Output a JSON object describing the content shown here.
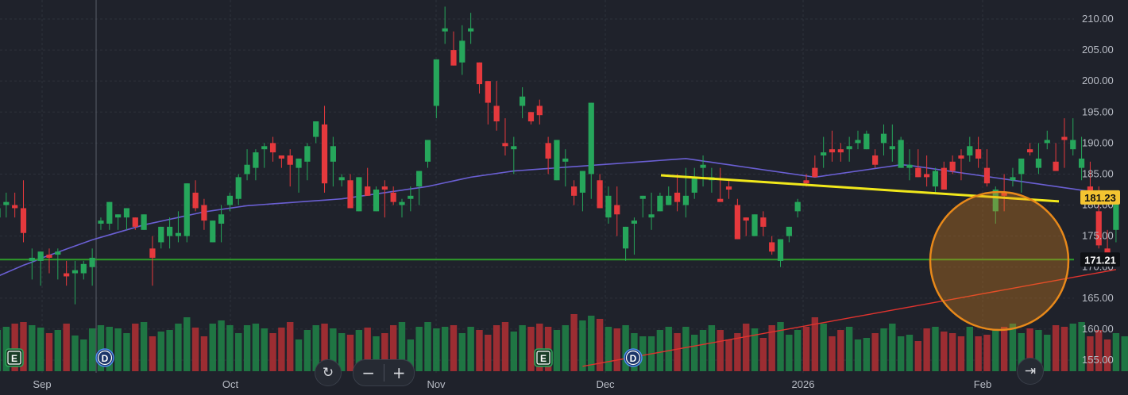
{
  "chart_data": {
    "type": "candlestick",
    "y_axis_ticks": [
      "155.00",
      "160.00",
      "165.00",
      "170.00",
      "175.00",
      "180.00",
      "185.00",
      "190.00",
      "195.00",
      "200.00",
      "205.00",
      "210.00"
    ],
    "ylim": [
      153.5,
      212.0
    ],
    "x_axis_labels": [
      "Sep",
      "Oct",
      "Nov",
      "Dec",
      "2026",
      "Feb"
    ],
    "last_price_label": "181.23",
    "horizontal_line_label": "171.21",
    "horizontal_line_value": 171.21,
    "event_markers": [
      {
        "label": "E",
        "type": "earnings",
        "bar_index": 1
      },
      {
        "label": "D",
        "type": "dividend",
        "bar_index": 11
      },
      {
        "label": "D",
        "type": "dividend",
        "bar_index": 67
      },
      {
        "label": "E",
        "type": "earnings",
        "bar_index": 57
      }
    ],
    "series_candles": [
      [
        178,
        181,
        176,
        179.5
      ],
      [
        180,
        182,
        178,
        180.5
      ],
      [
        180,
        182,
        178,
        179.5
      ],
      [
        179.5,
        184,
        174,
        175.5
      ],
      [
        171,
        173,
        168,
        171.5
      ],
      [
        171,
        172,
        167,
        172.5
      ],
      [
        172,
        173,
        169,
        171.5
      ],
      [
        172,
        173,
        168,
        172.5
      ],
      [
        169,
        171,
        167,
        168.5
      ],
      [
        169,
        171,
        164,
        169.5
      ],
      [
        169,
        171,
        168,
        170.5
      ],
      [
        170,
        173,
        167,
        171.5
      ],
      [
        177,
        178,
        176,
        177.5
      ],
      [
        177,
        178,
        176,
        180.5
      ],
      [
        178,
        178,
        176,
        178.5
      ],
      [
        178,
        178,
        176,
        179.5
      ],
      [
        178,
        178,
        176,
        176.5
      ],
      [
        176,
        178,
        176,
        178.5
      ],
      [
        173,
        175,
        167,
        171.5
      ],
      [
        174,
        176,
        173,
        176.5
      ],
      [
        175,
        178,
        173,
        176.5
      ],
      [
        175,
        179,
        174,
        175.5
      ],
      [
        175,
        183,
        174,
        183.5
      ],
      [
        182,
        184,
        179,
        179.5
      ],
      [
        180,
        181,
        176,
        177.5
      ],
      [
        174,
        176,
        175,
        177.5
      ],
      [
        177,
        180,
        174,
        178.5
      ],
      [
        180,
        182,
        179,
        181.5
      ],
      [
        181,
        185,
        180,
        184.5
      ],
      [
        185,
        189,
        184,
        186.5
      ],
      [
        186,
        189,
        184,
        188.5
      ],
      [
        189,
        190,
        186,
        189.5
      ],
      [
        190,
        191,
        187,
        188.5
      ],
      [
        188,
        188,
        186,
        187.5
      ],
      [
        188,
        189,
        183,
        186.5
      ],
      [
        186,
        187,
        182,
        187.5
      ],
      [
        187,
        190,
        184,
        189.5
      ],
      [
        191,
        191,
        190,
        193.5
      ],
      [
        193,
        196,
        182,
        183.5
      ],
      [
        187,
        191,
        183,
        189.5
      ],
      [
        184,
        185,
        183,
        184.5
      ],
      [
        184,
        185,
        181,
        179.5
      ],
      [
        179,
        181,
        179,
        184.5
      ],
      [
        183,
        186,
        182,
        181.5
      ],
      [
        179,
        183,
        181,
        182.5
      ],
      [
        183,
        184,
        178,
        182.5
      ],
      [
        182,
        183,
        180,
        180.5
      ],
      [
        180,
        181,
        178,
        180.5
      ],
      [
        181,
        183,
        179,
        181.5
      ],
      [
        183,
        185,
        180,
        185.5
      ],
      [
        187,
        190,
        186,
        190.5
      ],
      [
        196,
        198,
        194,
        203.5
      ],
      [
        208,
        212,
        206,
        208.5
      ],
      [
        205,
        208,
        203,
        202.5
      ],
      [
        203,
        209,
        201,
        206.5
      ],
      [
        208,
        211,
        206,
        208.5
      ],
      [
        203,
        203,
        198,
        199.5
      ],
      [
        200,
        199,
        193,
        196.5
      ],
      [
        196,
        200,
        192,
        193.5
      ],
      [
        190,
        194,
        188,
        189.5
      ],
      [
        189,
        191,
        185,
        189.5
      ],
      [
        196,
        199,
        194,
        197.5
      ],
      [
        195,
        195,
        193,
        193.5
      ],
      [
        196,
        197,
        193,
        194.5
      ],
      [
        190,
        191,
        185,
        187.5
      ],
      [
        184,
        190,
        184,
        190.5
      ],
      [
        187,
        189,
        183,
        187.5
      ],
      [
        183,
        184,
        180,
        181.5
      ],
      [
        182,
        185,
        179,
        185.5
      ],
      [
        185,
        195,
        181,
        196.5
      ],
      [
        184,
        185,
        180,
        179.5
      ],
      [
        178,
        183,
        177,
        181.5
      ],
      [
        180,
        183,
        175,
        178.5
      ],
      [
        173,
        175,
        171,
        176.5
      ],
      [
        177,
        178,
        172,
        177.5
      ],
      [
        181,
        181,
        178,
        181.5
      ],
      [
        178,
        182,
        176,
        178.5
      ],
      [
        179,
        182,
        179,
        181.5
      ],
      [
        180,
        183,
        180,
        181.5
      ],
      [
        182,
        185,
        179,
        180.5
      ],
      [
        180,
        186,
        178,
        181.5
      ],
      [
        182,
        186,
        181,
        184.5
      ],
      [
        186,
        188,
        183,
        186.5
      ],
      [
        184,
        186,
        182,
        184.5
      ],
      [
        181,
        186,
        181,
        180.5
      ],
      [
        183,
        184,
        181,
        182.5
      ],
      [
        180,
        181,
        175,
        174.5
      ],
      [
        178,
        178,
        175,
        177.5
      ],
      [
        175,
        177,
        175,
        178.5
      ],
      [
        178,
        179,
        175,
        176.5
      ],
      [
        174,
        175,
        172,
        172.5
      ],
      [
        171,
        172,
        170,
        174.5
      ],
      [
        175,
        176,
        174,
        176.5
      ],
      [
        179,
        181,
        178,
        180.5
      ],
      [
        184,
        185,
        183,
        183.5
      ],
      [
        186,
        188,
        185,
        184.5
      ],
      [
        188,
        191,
        186,
        188.5
      ],
      [
        189,
        192,
        187,
        188.5
      ],
      [
        189,
        190,
        187,
        188.5
      ],
      [
        189,
        191,
        187,
        189.5
      ],
      [
        190,
        192,
        189,
        190.5
      ],
      [
        189,
        192,
        189,
        191.5
      ],
      [
        188,
        189,
        186,
        186.5
      ],
      [
        190,
        193,
        188,
        191.5
      ],
      [
        189,
        193,
        187,
        189.5
      ],
      [
        186,
        191,
        188,
        190.5
      ],
      [
        186,
        189,
        184,
        186.5
      ],
      [
        186,
        189,
        185,
        184.5
      ],
      [
        185,
        188,
        183,
        184.5
      ],
      [
        183,
        186,
        182,
        185.5
      ],
      [
        186,
        187,
        183,
        182.5
      ],
      [
        187,
        188,
        185,
        185.5
      ],
      [
        188,
        189,
        184,
        187.5
      ],
      [
        188,
        191,
        187,
        189.5
      ],
      [
        189,
        191,
        186,
        187.5
      ],
      [
        186,
        189,
        183,
        183.5
      ],
      [
        179,
        183,
        177,
        182.5
      ],
      [
        182,
        185,
        179,
        181.5
      ],
      [
        184,
        186,
        183,
        184.5
      ],
      [
        185,
        186,
        182,
        187.5
      ],
      [
        189,
        190,
        188,
        188.5
      ],
      [
        186,
        190,
        185,
        187.5
      ],
      [
        190,
        192,
        189,
        190.5
      ],
      [
        187,
        190,
        186,
        185.5
      ],
      [
        191,
        194,
        186,
        190.5
      ],
      [
        189,
        194,
        188,
        190.5
      ],
      [
        186,
        191,
        184,
        187.5
      ],
      [
        183,
        187,
        180,
        180.5
      ],
      [
        179,
        183,
        173,
        173.5
      ],
      [
        173,
        176,
        171,
        171.5
      ],
      [
        176,
        181,
        174,
        181.5
      ]
    ],
    "ma_short_values": [
      168.5,
      169.1,
      169.7,
      170.3,
      170.8,
      171.4,
      171.9,
      172.4,
      172.9,
      173.4,
      173.9,
      174.4,
      174.8,
      175.2,
      175.6,
      176.0,
      176.4,
      176.8,
      177.1,
      177.4,
      177.7,
      178.0,
      178.3,
      178.6,
      178.9,
      179.1,
      179.3,
      179.5,
      179.7,
      179.9,
      180.0,
      180.1,
      180.2,
      180.3,
      180.4,
      180.5,
      180.6,
      180.7,
      180.8,
      180.9,
      181.0,
      181.2,
      181.4,
      181.6,
      181.8,
      182.0,
      182.2,
      182.4,
      182.6,
      182.8,
      183.0,
      183.3,
      183.6,
      183.9,
      184.2,
      184.5,
      184.7,
      184.9,
      185.1,
      185.3,
      185.5,
      185.6,
      185.7,
      185.8,
      185.9,
      186.0,
      186.1,
      186.2,
      186.3,
      186.4,
      186.5,
      186.6,
      186.7,
      186.8,
      186.9,
      187.0,
      187.1,
      187.2,
      187.3,
      187.4,
      187.5,
      187.3,
      187.1,
      186.9,
      186.7,
      186.5,
      186.3,
      186.1,
      185.9,
      185.7,
      185.5,
      185.3,
      185.1,
      184.9,
      184.7,
      184.5,
      184.7,
      184.9,
      185.1,
      185.3,
      185.5,
      185.7,
      185.9,
      186.1,
      186.3,
      186.5,
      186.4,
      186.2,
      186.0,
      185.8,
      185.6,
      185.4,
      185.2,
      185.0,
      184.8,
      184.6,
      184.4,
      184.2,
      184.0,
      183.8,
      183.6,
      183.4,
      183.2,
      183.0,
      182.8,
      182.6,
      182.4,
      182.2,
      182.0
    ],
    "ma_long_values": [
      154.0,
      154.6,
      155.2,
      155.8,
      156.4,
      157.0,
      157.6,
      158.2,
      158.8,
      159.4,
      160.0,
      160.6,
      161.2,
      161.8,
      162.4,
      163.0,
      163.6,
      164.2,
      164.8,
      165.4,
      166.0,
      166.6,
      167.2,
      167.8,
      168.4,
      169.0,
      169.6
    ],
    "volume_heights": [
      52,
      56,
      60,
      62,
      58,
      55,
      48,
      52,
      60,
      45,
      40,
      54,
      58,
      56,
      54,
      48,
      60,
      62,
      44,
      50,
      52,
      60,
      68,
      55,
      44,
      60,
      64,
      58,
      48,
      58,
      60,
      54,
      48,
      55,
      62,
      40,
      52,
      58,
      60,
      54,
      48,
      46,
      52,
      55,
      44,
      48,
      58,
      62,
      40,
      56,
      62,
      54,
      56,
      58,
      48,
      56,
      52,
      46,
      58,
      62,
      50,
      58,
      56,
      60,
      56,
      52,
      58,
      72,
      64,
      70,
      66,
      56,
      54,
      58,
      48,
      44,
      44,
      52,
      56,
      48,
      56,
      46,
      52,
      58,
      52,
      40,
      48,
      60,
      54,
      42,
      58,
      62,
      46,
      52,
      56,
      68,
      60,
      44,
      52,
      56,
      40,
      42,
      48,
      54,
      60,
      44,
      46,
      38,
      54,
      56,
      50,
      48,
      44,
      56,
      44,
      46,
      52,
      56,
      60,
      48,
      54,
      52,
      46,
      58,
      56,
      60,
      62,
      44,
      52,
      40,
      48,
      44,
      40,
      38,
      42
    ],
    "yellow_trendline": [
      [
        832,
        184.8
      ],
      [
        1333,
        180.6
      ]
    ],
    "highlight_circle": {
      "note": "orange circle annotation"
    }
  },
  "controls": {
    "reset_icon": "↻",
    "zoom_out": "−",
    "zoom_in": "+",
    "scroll_to_end_icon": "⇥"
  },
  "colors": {
    "background": "#1f222b",
    "up": "#26a65b",
    "down": "#e5393d",
    "ma_short": "#6a5fd3",
    "ma_long": "#e0332e",
    "trendline": "#f1e81b",
    "hline": "#2e9b2a",
    "annotation": "#e8891a",
    "last_price_bg": "#f4c431"
  }
}
